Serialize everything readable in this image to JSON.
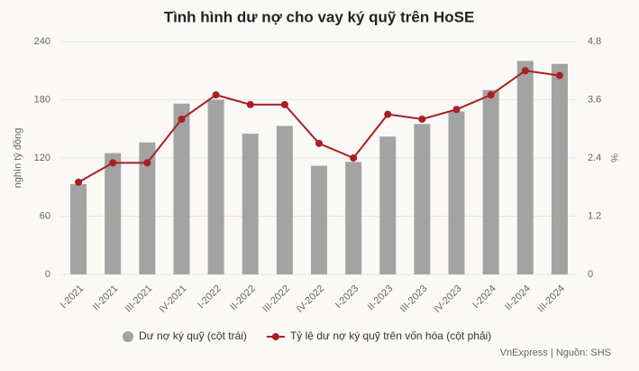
{
  "chart_data": {
    "type": "bar_line",
    "title": "Tình hình dư nợ cho vay ký quỹ trên HoSE",
    "y_label": "nghìn tỷ đồng",
    "y2_label": "%",
    "source": "VnExpress | Nguồn: SHS",
    "categories": [
      "I-2021",
      "II-2021",
      "III-2021",
      "IV-2021",
      "I-2022",
      "II-2022",
      "III-2022",
      "IV-2022",
      "I-2023",
      "II-2023",
      "III-2023",
      "IV-2023",
      "I-2024",
      "II-2024",
      "III-2024"
    ],
    "series": [
      {
        "name": "Dư nợ ký quỹ (cột trái)",
        "type": "bar",
        "color": "#a3a3a3",
        "values": [
          93,
          125,
          136,
          176,
          180,
          145,
          153,
          112,
          116,
          142,
          155,
          168,
          190,
          220,
          217
        ]
      },
      {
        "name": "Tỷ lệ dư nợ ký quỹ trên vốn hóa (cột phải)",
        "type": "line",
        "axis": "y2",
        "color": "#a82023",
        "values": [
          1.9,
          2.3,
          2.3,
          3.2,
          3.7,
          3.5,
          3.5,
          2.7,
          2.4,
          3.3,
          3.2,
          3.4,
          3.7,
          4.2,
          4.1
        ]
      }
    ],
    "ylim": [
      0,
      240
    ],
    "yticks": [
      0,
      60,
      120,
      180,
      240
    ],
    "y2lim": [
      0,
      4.8
    ],
    "y2ticks": [
      0,
      1.2,
      2.4,
      3.6,
      4.8
    ],
    "grid": true
  }
}
